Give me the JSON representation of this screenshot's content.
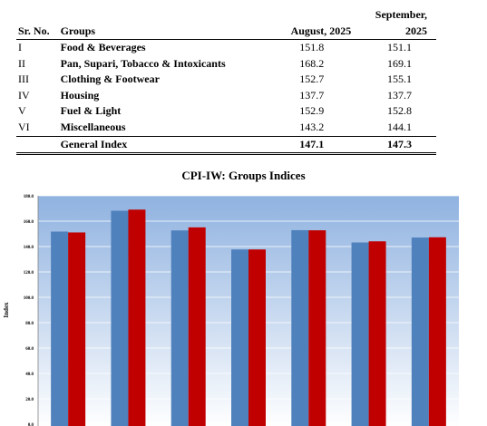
{
  "table": {
    "headers": {
      "sr": "Sr. No.",
      "group": "Groups",
      "aug": "August, 2025",
      "sep": "September, 2025"
    },
    "rows": [
      {
        "sr": "I",
        "group": "Food & Beverages",
        "aug": "151.8",
        "sep": "151.1"
      },
      {
        "sr": "II",
        "group": "Pan, Supari, Tobacco & Intoxicants",
        "aug": "168.2",
        "sep": "169.1"
      },
      {
        "sr": "III",
        "group": "Clothing & Footwear",
        "aug": "152.7",
        "sep": "155.1"
      },
      {
        "sr": "IV",
        "group": "Housing",
        "aug": "137.7",
        "sep": "137.7"
      },
      {
        "sr": "V",
        "group": "Fuel & Light",
        "aug": "152.9",
        "sep": "152.8"
      },
      {
        "sr": "VI",
        "group": "Miscellaneous",
        "aug": "143.2",
        "sep": "144.1"
      }
    ],
    "total": {
      "group": "General Index",
      "aug": "147.1",
      "sep": "147.3"
    }
  },
  "chart_data": {
    "type": "bar",
    "title": "CPI-IW: Groups Indices",
    "ylabel": "Index",
    "ylim": [
      0,
      180
    ],
    "yticks": [
      "0.0",
      "20.0",
      "40.0",
      "60.0",
      "80.0",
      "100.0",
      "120.0",
      "140.0",
      "160.0",
      "180.0"
    ],
    "values_aug": [
      151.8,
      168.2,
      152.7,
      137.7,
      152.9,
      143.2,
      147.1
    ],
    "values_sep": [
      151.1,
      169.1,
      155.1,
      137.7,
      152.8,
      144.1,
      147.3
    ],
    "colors": {
      "aug": "#4f81bd",
      "sep": "#c00000",
      "bg_top": "#8fb2e0",
      "bg_bottom": "#ffffff",
      "grid": "#ffffff"
    }
  }
}
